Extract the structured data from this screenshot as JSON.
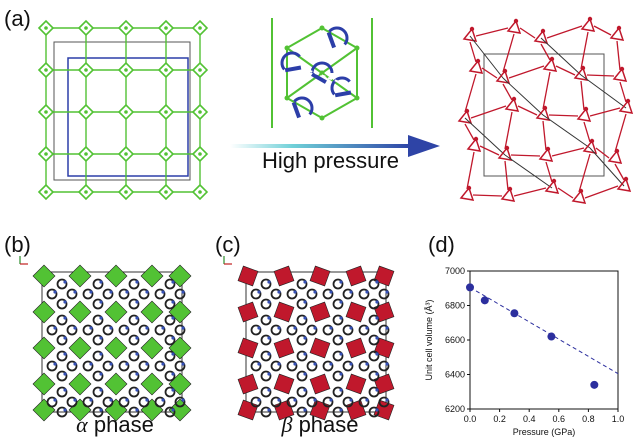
{
  "panels": {
    "a": "(a)",
    "b": "(b)",
    "c": "(c)",
    "d": "(d)"
  },
  "arrow_label": "High pressure",
  "phase_alpha": {
    "symbol": "α",
    "word": "phase"
  },
  "phase_beta": {
    "symbol": "β",
    "word": "phase"
  },
  "colors": {
    "green_net": "#52c234",
    "red_net": "#c0182c",
    "blue_cell": "#2c3ea8",
    "arrow": "#2e44a6",
    "points": "#2c2f9e"
  },
  "chart_data": {
    "type": "scatter",
    "xlabel": "Pressure (GPa)",
    "ylabel": "Unit cell volume (Å³)",
    "xlim": [
      0.0,
      1.0
    ],
    "ylim": [
      6200,
      7000
    ],
    "xticks": [
      "0.0",
      "0.2",
      "0.4",
      "0.6",
      "0.8",
      "1.0"
    ],
    "yticks": [
      "6200",
      "6400",
      "6600",
      "6800",
      "7000"
    ],
    "points": [
      {
        "x": 0.0,
        "y": 6905
      },
      {
        "x": 0.1,
        "y": 6830
      },
      {
        "x": 0.3,
        "y": 6755
      },
      {
        "x": 0.55,
        "y": 6620
      },
      {
        "x": 0.84,
        "y": 6340
      }
    ],
    "fit": {
      "x": [
        0.0,
        1.0
      ],
      "y": [
        6905,
        6405
      ],
      "style": "dashed"
    }
  }
}
